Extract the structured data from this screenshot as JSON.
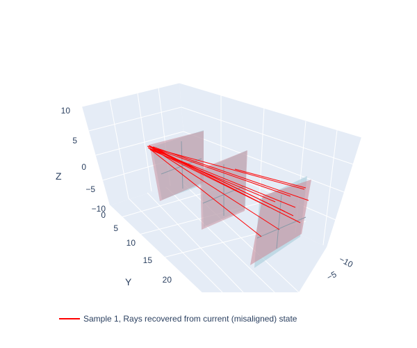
{
  "chart_data": {
    "type": "3d-scatter-lines",
    "title": "",
    "axes": {
      "x": {
        "title": "",
        "ticks": [
          "−10",
          "−5"
        ]
      },
      "y": {
        "title": "Y",
        "ticks": [
          "0",
          "5",
          "10",
          "15",
          "20"
        ]
      },
      "z": {
        "title": "Z",
        "ticks": [
          "10",
          "5",
          "0",
          "−5",
          "−10"
        ]
      }
    },
    "series": [
      {
        "name": "Sample 1, Rays recovered from current (misaligned) state",
        "color": "#ff0000",
        "mode": "lines"
      }
    ],
    "surfaces": {
      "count": 3,
      "fill_color": "#c9909c",
      "edge_color": "#a9d4e0"
    },
    "legend": {
      "position": "bottom-left",
      "orientation": "horizontal"
    },
    "colors": {
      "scene_background": "#e5ecf6",
      "grid": "#ffffff",
      "text": "#2a3f5f",
      "plane_frame": "#a7cddb"
    }
  }
}
